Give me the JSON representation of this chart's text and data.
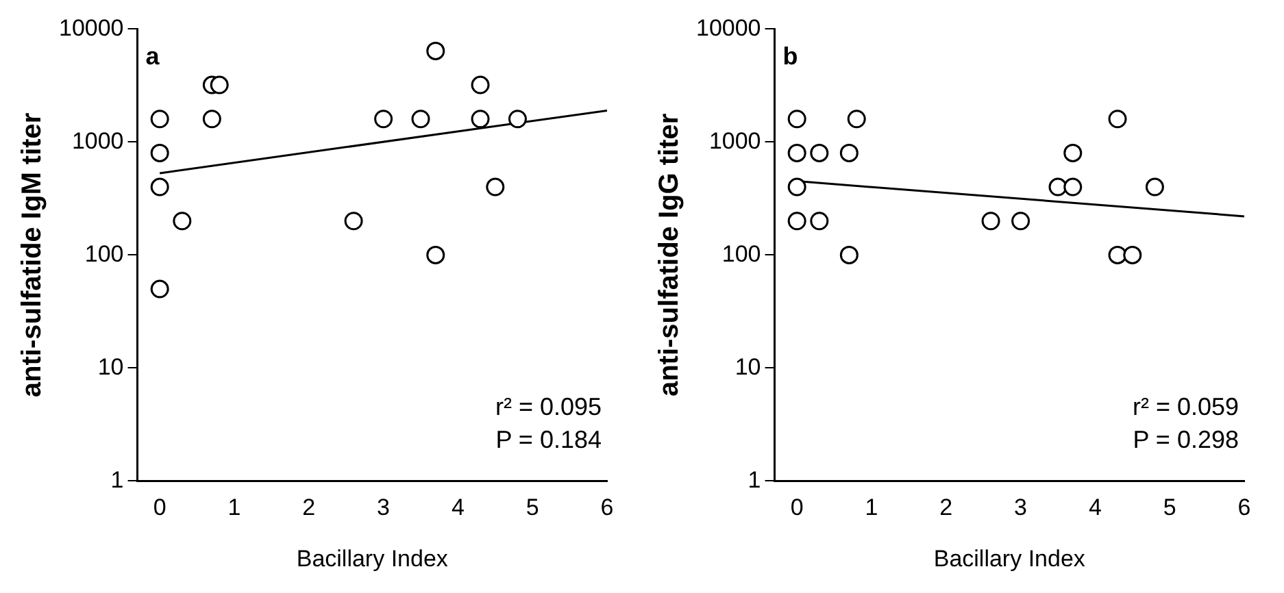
{
  "chart_data": [
    {
      "type": "scatter",
      "xlabel": "Bacillary Index",
      "ylabel": "anti-sulfatide IgM titer",
      "log": "y",
      "marker": "circle",
      "xlim": [
        -0.3,
        6
      ],
      "xticks": [
        0,
        1,
        2,
        3,
        4,
        5,
        6
      ],
      "ylim": [
        1,
        10000
      ],
      "yticks": [
        1,
        10,
        100,
        1000,
        10000
      ],
      "annotations": [
        "a",
        "r² = 0.095",
        "P = 0.184"
      ],
      "series": [
        {
          "color": "#000000",
          "x": [
            0,
            0,
            0,
            0.3,
            0,
            0.7,
            0.8,
            0.7,
            2.6,
            3.0,
            3.5,
            3.7,
            3.7,
            4.3,
            4.3,
            4.5,
            4.8
          ],
          "values": [
            1600,
            800,
            400,
            200,
            50,
            3200,
            3200,
            1600,
            200,
            1600,
            1600,
            6400,
            100,
            3200,
            1600,
            400,
            1600
          ]
        },
        {
          "type": "line",
          "marker": "none",
          "color": "#000000",
          "x": [
            0,
            6
          ],
          "values": [
            530,
            1900
          ]
        }
      ]
    },
    {
      "type": "scatter",
      "xlabel": "Bacillary Index",
      "ylabel": "anti-sulfatide IgG titer",
      "log": "y",
      "marker": "circle",
      "xlim": [
        -0.3,
        6
      ],
      "xticks": [
        0,
        1,
        2,
        3,
        4,
        5,
        6
      ],
      "ylim": [
        1,
        10000
      ],
      "yticks": [
        1,
        10,
        100,
        1000,
        10000
      ],
      "annotations": [
        "b",
        "r² = 0.059",
        "P = 0.298"
      ],
      "series": [
        {
          "color": "#000000",
          "x": [
            0,
            0,
            0,
            0,
            0.3,
            0.3,
            0.8,
            0.7,
            0.7,
            2.6,
            3.0,
            3.5,
            3.7,
            3.7,
            4.3,
            4.3,
            4.5,
            4.8
          ],
          "values": [
            1600,
            800,
            400,
            200,
            800,
            200,
            1600,
            800,
            100,
            200,
            200,
            400,
            400,
            800,
            1600,
            100,
            100,
            400
          ]
        },
        {
          "type": "line",
          "marker": "none",
          "color": "#000000",
          "x": [
            0,
            6
          ],
          "values": [
            450,
            220
          ]
        }
      ]
    }
  ]
}
